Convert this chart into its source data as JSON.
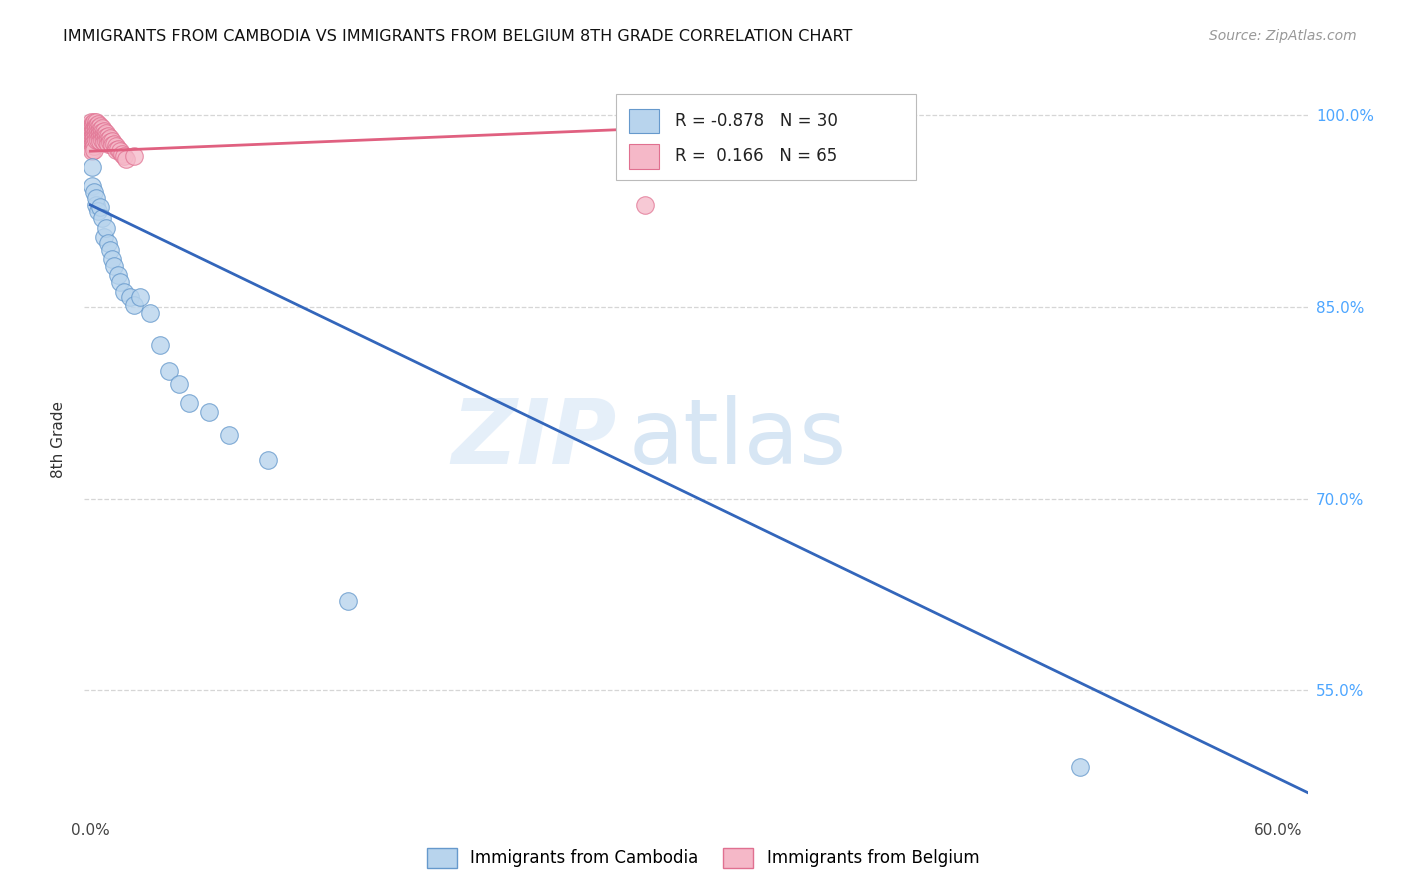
{
  "title": "IMMIGRANTS FROM CAMBODIA VS IMMIGRANTS FROM BELGIUM 8TH GRADE CORRELATION CHART",
  "source": "Source: ZipAtlas.com",
  "ylabel_label": "8th Grade",
  "xlim": [
    -0.003,
    0.615
  ],
  "ylim": [
    0.455,
    1.038
  ],
  "ytick_positions": [
    0.55,
    0.7,
    0.85,
    1.0
  ],
  "ytick_labels": [
    "55.0%",
    "70.0%",
    "85.0%",
    "100.0%"
  ],
  "xtick_positions": [
    0.0,
    0.1,
    0.2,
    0.3,
    0.4,
    0.5,
    0.6
  ],
  "xtick_labels": [
    "0.0%",
    "",
    "",
    "",
    "",
    "",
    "60.0%"
  ],
  "cambodia_color": "#b8d4ed",
  "cambodia_edge_color": "#6699cc",
  "belgium_color": "#f5b8c8",
  "belgium_edge_color": "#e07090",
  "regression_cambodia_color": "#3366bb",
  "regression_belgium_color": "#e06080",
  "R_cambodia": -0.878,
  "N_cambodia": 30,
  "R_belgium": 0.166,
  "N_belgium": 65,
  "watermark_zip": "ZIP",
  "watermark_atlas": "atlas",
  "background_color": "#ffffff",
  "grid_color": "#cccccc",
  "right_axis_color": "#4da6ff",
  "cam_line_x0": 0.0,
  "cam_line_y0": 0.93,
  "cam_line_x1": 0.615,
  "cam_line_y1": 0.47,
  "bel_line_x0": 0.0,
  "bel_line_y0": 0.972,
  "bel_line_x1": 0.285,
  "bel_line_y1": 0.99,
  "cambodia_x": [
    0.001,
    0.001,
    0.002,
    0.003,
    0.003,
    0.004,
    0.005,
    0.006,
    0.007,
    0.008,
    0.009,
    0.01,
    0.011,
    0.012,
    0.014,
    0.015,
    0.017,
    0.02,
    0.022,
    0.025,
    0.03,
    0.035,
    0.04,
    0.045,
    0.05,
    0.06,
    0.07,
    0.09,
    0.13,
    0.5
  ],
  "cambodia_y": [
    0.96,
    0.945,
    0.94,
    0.93,
    0.935,
    0.925,
    0.928,
    0.92,
    0.905,
    0.912,
    0.9,
    0.895,
    0.888,
    0.882,
    0.875,
    0.87,
    0.862,
    0.858,
    0.852,
    0.858,
    0.845,
    0.82,
    0.8,
    0.79,
    0.775,
    0.768,
    0.75,
    0.73,
    0.62,
    0.49
  ],
  "belgium_x": [
    0.0005,
    0.0007,
    0.001,
    0.001,
    0.001,
    0.001,
    0.001,
    0.001,
    0.001,
    0.001,
    0.001,
    0.001,
    0.001,
    0.002,
    0.002,
    0.002,
    0.002,
    0.002,
    0.002,
    0.002,
    0.002,
    0.003,
    0.003,
    0.003,
    0.003,
    0.003,
    0.003,
    0.004,
    0.004,
    0.004,
    0.004,
    0.004,
    0.005,
    0.005,
    0.005,
    0.005,
    0.005,
    0.006,
    0.006,
    0.006,
    0.006,
    0.007,
    0.007,
    0.007,
    0.007,
    0.008,
    0.008,
    0.008,
    0.009,
    0.009,
    0.009,
    0.01,
    0.01,
    0.011,
    0.011,
    0.012,
    0.013,
    0.013,
    0.014,
    0.015,
    0.016,
    0.017,
    0.018,
    0.022,
    0.28
  ],
  "belgium_y": [
    0.995,
    0.993,
    0.992,
    0.99,
    0.988,
    0.986,
    0.984,
    0.982,
    0.98,
    0.978,
    0.976,
    0.974,
    0.972,
    0.995,
    0.99,
    0.988,
    0.985,
    0.982,
    0.979,
    0.976,
    0.973,
    0.995,
    0.992,
    0.99,
    0.987,
    0.984,
    0.981,
    0.993,
    0.99,
    0.987,
    0.984,
    0.981,
    0.992,
    0.989,
    0.986,
    0.983,
    0.98,
    0.99,
    0.987,
    0.984,
    0.981,
    0.988,
    0.985,
    0.982,
    0.979,
    0.986,
    0.983,
    0.98,
    0.984,
    0.981,
    0.978,
    0.982,
    0.979,
    0.98,
    0.977,
    0.978,
    0.976,
    0.973,
    0.974,
    0.972,
    0.97,
    0.968,
    0.966,
    0.968,
    0.93
  ]
}
